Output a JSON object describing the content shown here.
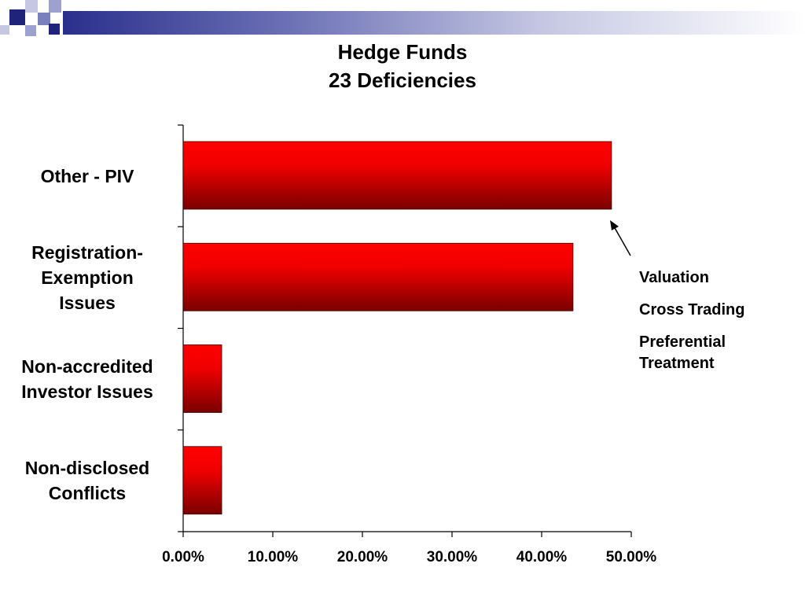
{
  "slide": {
    "colors": {
      "bar_top": "#ff0000",
      "bar_bottom": "#7a0000",
      "header_dark": "#2a2f8c",
      "header_light": "#c6c8e3"
    }
  },
  "chart_data": {
    "type": "bar",
    "orientation": "horizontal",
    "title": "Hedge Funds",
    "subtitle": "23 Deficiencies",
    "categories": [
      "Other - PIV",
      "Registration-Exemption Issues",
      "Non-accredited Investor Issues",
      "Non-disclosed Conflicts"
    ],
    "category_lines": [
      [
        "Other - PIV"
      ],
      [
        "Registration-",
        "Exemption",
        "Issues"
      ],
      [
        "Non-accredited",
        "Investor Issues"
      ],
      [
        "Non-disclosed",
        "Conflicts"
      ]
    ],
    "values": [
      47.8,
      43.5,
      4.3,
      4.3
    ],
    "xlim": [
      0,
      50
    ],
    "x_ticks": [
      "0.00%",
      "10.00%",
      "20.00%",
      "30.00%",
      "40.00%",
      "50.00%"
    ],
    "grid": false,
    "annotation": {
      "points_to": "Other - PIV",
      "items": [
        "Valuation",
        "Cross Trading",
        "Preferential Treatment"
      ]
    }
  }
}
